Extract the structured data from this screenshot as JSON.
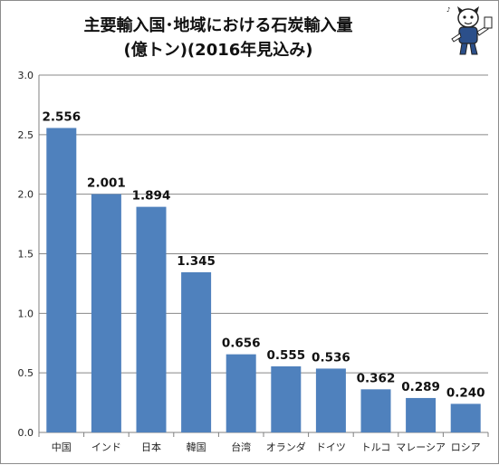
{
  "title": {
    "line1": "主要輸入国･地域における石炭輸入量",
    "line2": "(億トン)(2016年見込み)"
  },
  "colors": {
    "bar": "#4f81bd",
    "grid": "#888888"
  },
  "mascot_icon": "cartoon-character-mascot",
  "chart_data": {
    "type": "bar",
    "title": "主要輸入国･地域における石炭輸入量 (億トン)(2016年見込み)",
    "xlabel": "",
    "ylabel": "",
    "categories": [
      "中国",
      "インド",
      "日本",
      "韓国",
      "台湾",
      "オランダ",
      "ドイツ",
      "トルコ",
      "マレーシア",
      "ロシア"
    ],
    "values": [
      2.556,
      2.001,
      1.894,
      1.345,
      0.656,
      0.555,
      0.536,
      0.362,
      0.289,
      0.24
    ],
    "value_labels": [
      "2.556",
      "2.001",
      "1.894",
      "1.345",
      "0.656",
      "0.555",
      "0.536",
      "0.362",
      "0.289",
      "0.240"
    ],
    "ylim": [
      0,
      3.0
    ],
    "yticks": [
      "0.0",
      "0.5",
      "1.0",
      "1.5",
      "2.0",
      "2.5",
      "3.0"
    ],
    "grid": true,
    "legend": "none"
  }
}
